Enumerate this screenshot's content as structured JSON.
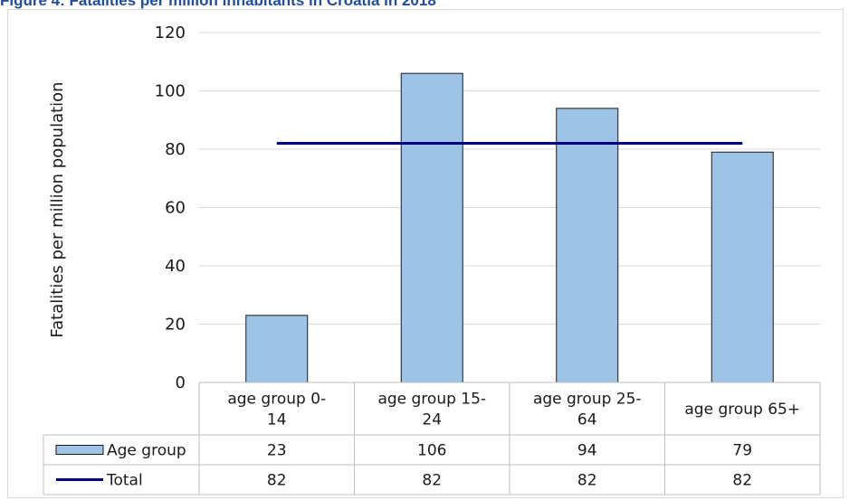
{
  "figure_title": "Figure 4: Fatalities per million inhabitants in Croatia in 2018",
  "colors": {
    "bar": "#9dc3e6",
    "bar_border": "#1a1a1a",
    "line": "#000080",
    "grid": "#d9d9d9",
    "title": "#1f4e9e"
  },
  "chart_data": {
    "type": "bar",
    "title": "Figure 4: Fatalities per million inhabitants in Croatia in 2018",
    "ylabel": "Fatalities per million population",
    "xlabel": "",
    "ylim": [
      0,
      120
    ],
    "yticks": [
      0,
      20,
      40,
      60,
      80,
      100,
      120
    ],
    "grid": true,
    "legend": "data-table",
    "categories": [
      [
        "age group 0-",
        "14"
      ],
      [
        "age group 15-",
        "24"
      ],
      [
        "age group 25-",
        "64"
      ],
      [
        "age group 65+"
      ]
    ],
    "series": [
      {
        "name": "Age group",
        "type": "bar",
        "values": [
          23,
          106,
          94,
          79
        ]
      },
      {
        "name": "Total",
        "type": "line",
        "values": [
          82,
          82,
          82,
          82
        ]
      }
    ]
  }
}
